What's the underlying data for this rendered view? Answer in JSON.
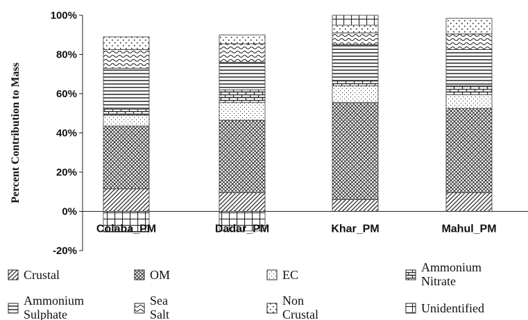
{
  "chart_data": {
    "type": "bar",
    "stacked": true,
    "title": "",
    "xlabel": "",
    "ylabel": "Percent Contribution to Mass",
    "ylim": [
      -20,
      100
    ],
    "yticks": [
      "-20%",
      "0%",
      "20%",
      "40%",
      "60%",
      "80%",
      "100%"
    ],
    "grid": false,
    "legend_position": "bottom",
    "categories": [
      "Colaba_PM",
      "Dadar_PM",
      "Khar_PM",
      "Mahul_PM"
    ],
    "series": [
      {
        "name": "Crustal",
        "values": [
          11.5,
          9.5,
          6,
          9.5
        ]
      },
      {
        "name": "OM",
        "values": [
          32,
          37,
          49.5,
          43
        ]
      },
      {
        "name": "EC",
        "values": [
          5.5,
          9,
          8.5,
          7
        ]
      },
      {
        "name": "Ammonium Nitrate",
        "values": [
          3,
          6.5,
          2.5,
          4.5
        ]
      },
      {
        "name": "Ammonium Sulphate",
        "values": [
          21,
          14,
          18.5,
          18.5
        ]
      },
      {
        "name": "Sea Salt",
        "values": [
          9.5,
          9.5,
          6,
          8
        ]
      },
      {
        "name": "Non Crustal",
        "values": [
          6.5,
          4.5,
          4,
          8
        ]
      },
      {
        "name": "Unidentified",
        "values": [
          -10.5,
          -10,
          5,
          0
        ]
      }
    ],
    "legend_rows": [
      [
        "Crustal",
        "OM",
        "EC",
        "Ammonium Nitrate"
      ],
      [
        "Ammonium Sulphate",
        "Sea Salt",
        "Non Crustal",
        "Unidentified"
      ]
    ]
  }
}
